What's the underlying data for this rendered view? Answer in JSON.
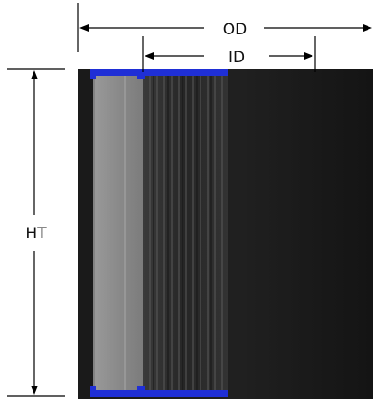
{
  "diagram": {
    "labels": {
      "od": "OD",
      "id": "ID",
      "ht": "HT"
    },
    "colors": {
      "background": "#ffffff",
      "line": "#000000",
      "end_cap": "#1f2fd6",
      "filter_body": "#1c1c1c",
      "inner_core": "#8e8e8e",
      "pleats": "#2a2a2a"
    }
  }
}
